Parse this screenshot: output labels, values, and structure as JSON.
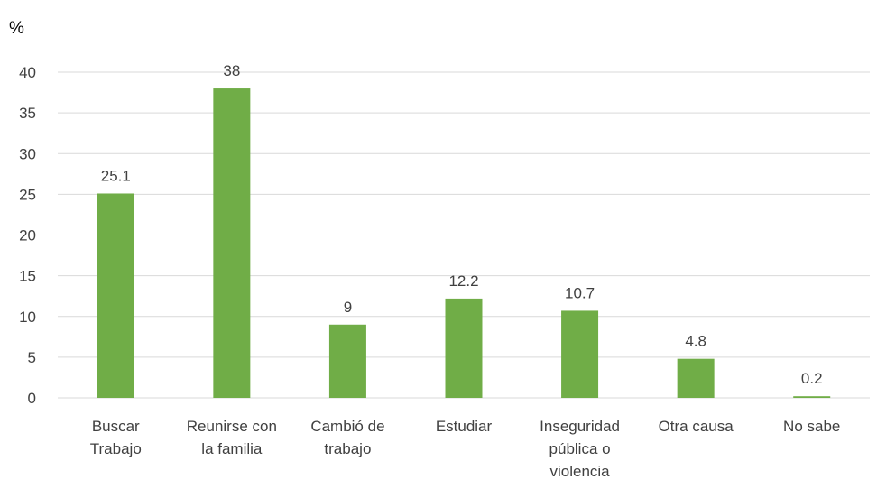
{
  "chart_data": {
    "type": "bar",
    "ylabel": "%",
    "categories": [
      [
        "Buscar",
        "Trabajo"
      ],
      [
        "Reunirse con",
        "la familia"
      ],
      [
        "Cambió de",
        "trabajo"
      ],
      [
        "Estudiar"
      ],
      [
        "Inseguridad",
        "pública o",
        "violencia"
      ],
      [
        "Otra causa"
      ],
      [
        "No sabe"
      ]
    ],
    "values": [
      25.1,
      38,
      9,
      12.2,
      10.7,
      4.8,
      0.2
    ],
    "data_labels": [
      "25.1",
      "38",
      "9",
      "12.2",
      "10.7",
      "4.8",
      "0.2"
    ],
    "ylim": [
      0,
      40
    ],
    "yticks": [
      0,
      5,
      10,
      15,
      20,
      25,
      30,
      35,
      40
    ],
    "grid": true,
    "legend": "none",
    "bar_color": "#70ad47"
  }
}
